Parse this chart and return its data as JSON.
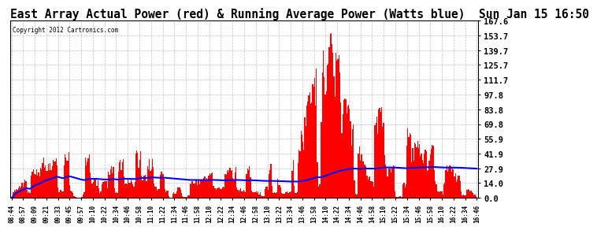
{
  "title": "East Array Actual Power (red) & Running Average Power (Watts blue)  Sun Jan 15 16:50",
  "copyright": "Copyright 2012 Cartronics.com",
  "ylabel_right_ticks": [
    0.0,
    14.0,
    27.9,
    41.9,
    55.9,
    69.8,
    83.8,
    97.8,
    111.7,
    125.7,
    139.7,
    153.7,
    167.6
  ],
  "ymax": 167.6,
  "ymin": 0.0,
  "bar_color": "#FF0000",
  "avg_color": "#0000FF",
  "background_color": "#FFFFFF",
  "grid_color": "#BBBBBB",
  "title_fontsize": 10.5,
  "x_labels": [
    "08:44",
    "08:57",
    "09:09",
    "09:21",
    "09:33",
    "09:45",
    "09:57",
    "10:10",
    "10:22",
    "10:34",
    "10:46",
    "10:58",
    "11:10",
    "11:22",
    "11:34",
    "11:46",
    "11:58",
    "12:10",
    "12:22",
    "12:34",
    "12:46",
    "12:58",
    "13:10",
    "13:22",
    "13:34",
    "13:46",
    "13:58",
    "14:10",
    "14:22",
    "14:34",
    "14:46",
    "14:58",
    "15:10",
    "15:22",
    "15:34",
    "15:46",
    "15:58",
    "16:10",
    "16:22",
    "16:34",
    "16:46"
  ],
  "n_points": 480
}
